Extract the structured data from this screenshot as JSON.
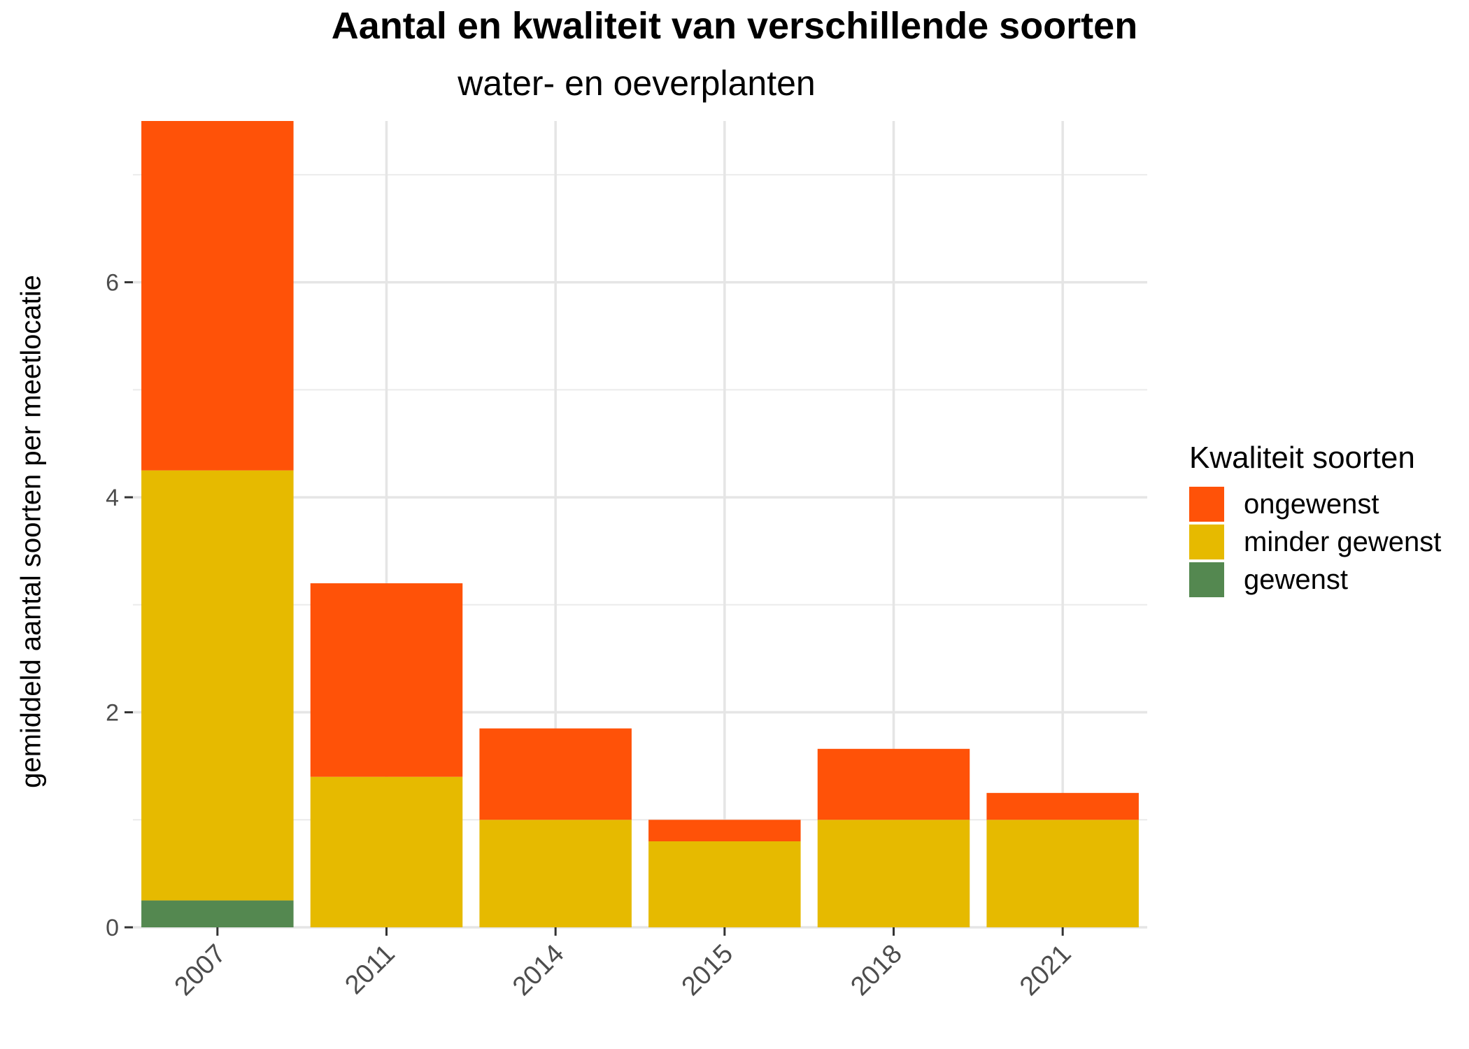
{
  "chart_data": {
    "type": "bar",
    "stacked": true,
    "title": "Aantal en kwaliteit van verschillende soorten",
    "subtitle": "water- en oeverplanten",
    "xlabel": "",
    "ylabel": "gemiddeld aantal soorten per meetlocatie",
    "categories": [
      "2007",
      "2011",
      "2014",
      "2015",
      "2018",
      "2021"
    ],
    "series": [
      {
        "name": "gewenst",
        "color": "#548850",
        "values": [
          0.25,
          0,
          0,
          0,
          0,
          0
        ]
      },
      {
        "name": "minder gewenst",
        "color": "#E6BA00",
        "values": [
          4.0,
          1.4,
          1.0,
          0.8,
          1.0,
          1.0
        ]
      },
      {
        "name": "ongewenst",
        "color": "#FF5208",
        "values": [
          3.25,
          1.8,
          0.85,
          0.2,
          0.66,
          0.25
        ]
      }
    ],
    "yticks": [
      0,
      2,
      4,
      6
    ],
    "ylim": [
      0,
      7.5
    ],
    "grid": true,
    "legend": {
      "title": "Kwaliteit soorten",
      "placement": "right",
      "order": [
        "ongewenst",
        "minder gewenst",
        "gewenst"
      ]
    }
  }
}
